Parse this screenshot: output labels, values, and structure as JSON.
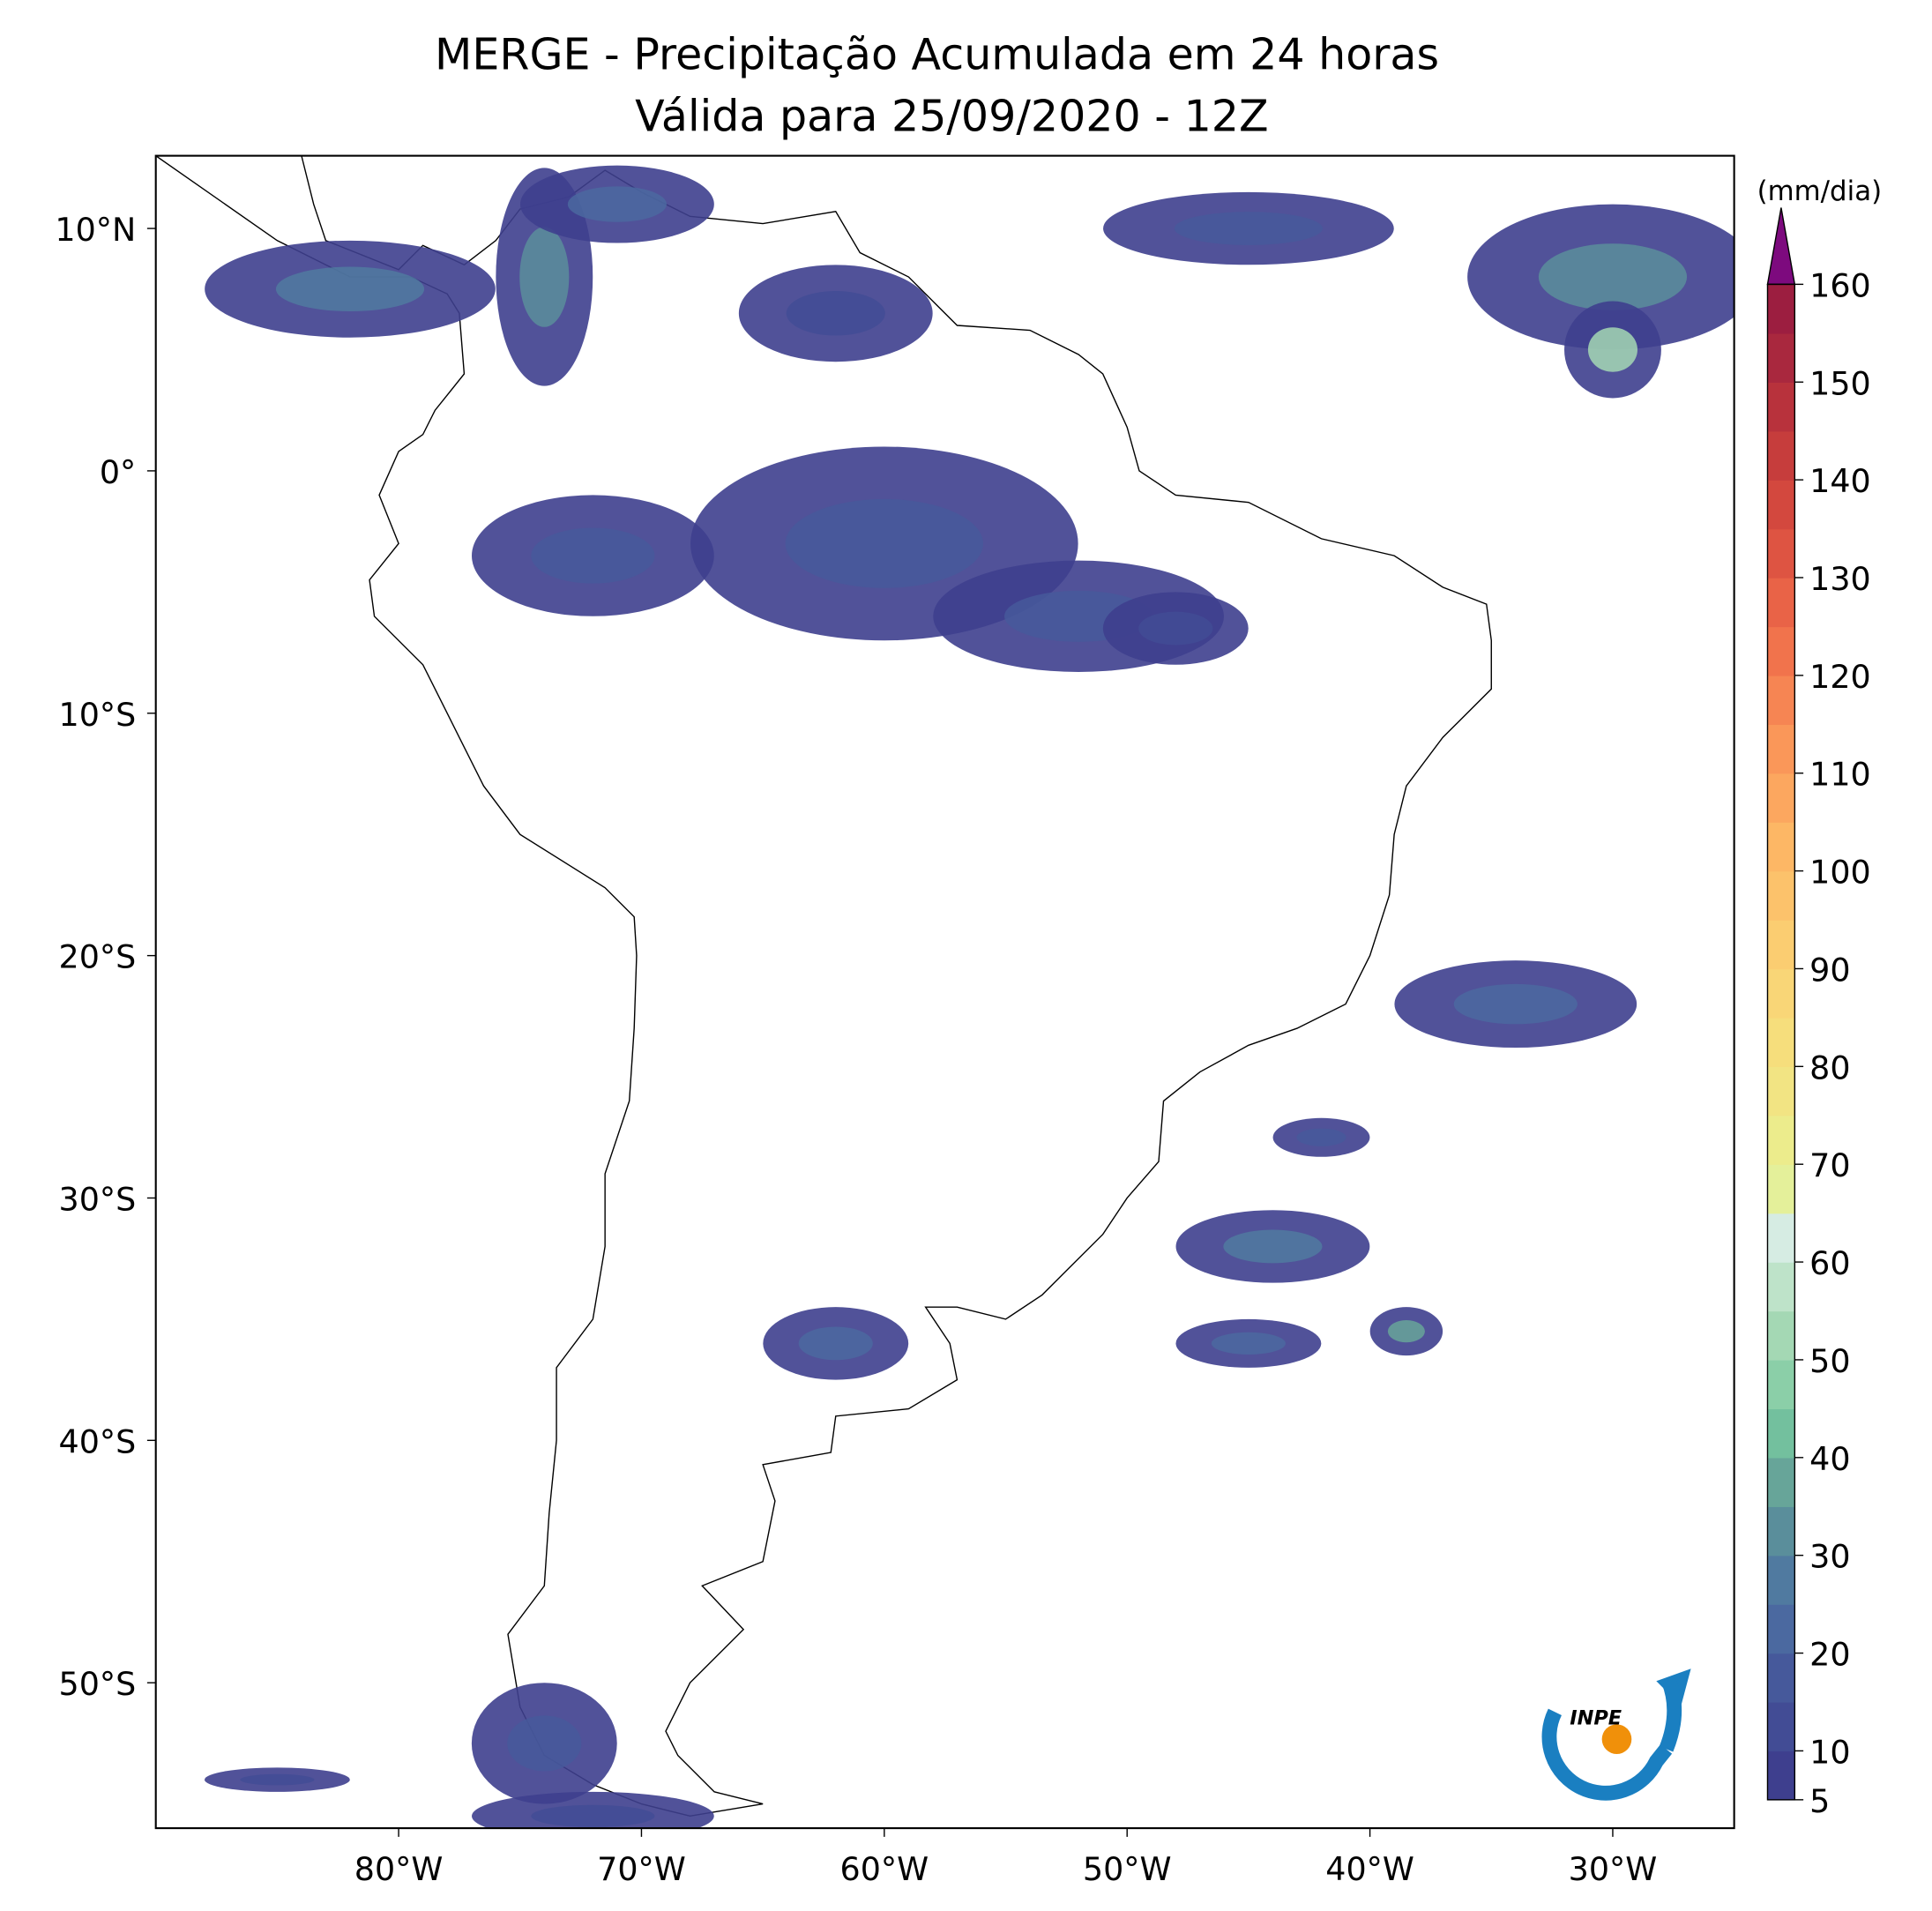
{
  "title": [
    "MERGE - Precipitação Acumulada em 24 horas",
    "Válida para 25/09/2020 - 12Z"
  ],
  "map": {
    "xlim": [
      -90,
      -25
    ],
    "ylim": [
      -56,
      13
    ],
    "xticks": [
      {
        "value": -80,
        "label": "80°W"
      },
      {
        "value": -70,
        "label": "70°W"
      },
      {
        "value": -60,
        "label": "60°W"
      },
      {
        "value": -50,
        "label": "50°W"
      },
      {
        "value": -40,
        "label": "40°W"
      },
      {
        "value": -30,
        "label": "30°W"
      }
    ],
    "yticks": [
      {
        "value": 10,
        "label": "10°N"
      },
      {
        "value": 0,
        "label": "0°"
      },
      {
        "value": -10,
        "label": "10°S"
      },
      {
        "value": -20,
        "label": "20°S"
      },
      {
        "value": -30,
        "label": "30°S"
      },
      {
        "value": -40,
        "label": "40°S"
      },
      {
        "value": -50,
        "label": "50°S"
      }
    ]
  },
  "colorbar": {
    "label": "(mm/dia)",
    "lim": [
      5,
      160
    ],
    "ticks": [
      5,
      10,
      20,
      30,
      40,
      50,
      60,
      70,
      80,
      90,
      100,
      110,
      120,
      130,
      140,
      150,
      160
    ],
    "levels": [
      5,
      10,
      15,
      20,
      25,
      30,
      35,
      40,
      45,
      50,
      55,
      60,
      65,
      70,
      75,
      80,
      85,
      90,
      95,
      100,
      105,
      110,
      115,
      120,
      125,
      130,
      135,
      140,
      145,
      150,
      155,
      160
    ],
    "colors": [
      "#3e3f8e",
      "#424c95",
      "#46599b",
      "#4b69a0",
      "#507aa0",
      "#5a8e9b",
      "#67a599",
      "#73c09e",
      "#8bcfa8",
      "#a4d8b4",
      "#bee3c9",
      "#d6ece3",
      "#e4f09a",
      "#ecec8c",
      "#f2e483",
      "#f6de7c",
      "#f9d677",
      "#fbcd71",
      "#fcc26b",
      "#fdb765",
      "#fca75f",
      "#fa9759",
      "#f68553",
      "#f1734c",
      "#e96347",
      "#de5442",
      "#d3483e",
      "#c63d3c",
      "#b8323c",
      "#a9283e",
      "#9c1e40"
    ],
    "over_color": "#7d0a7e"
  },
  "logo": "INPE"
}
